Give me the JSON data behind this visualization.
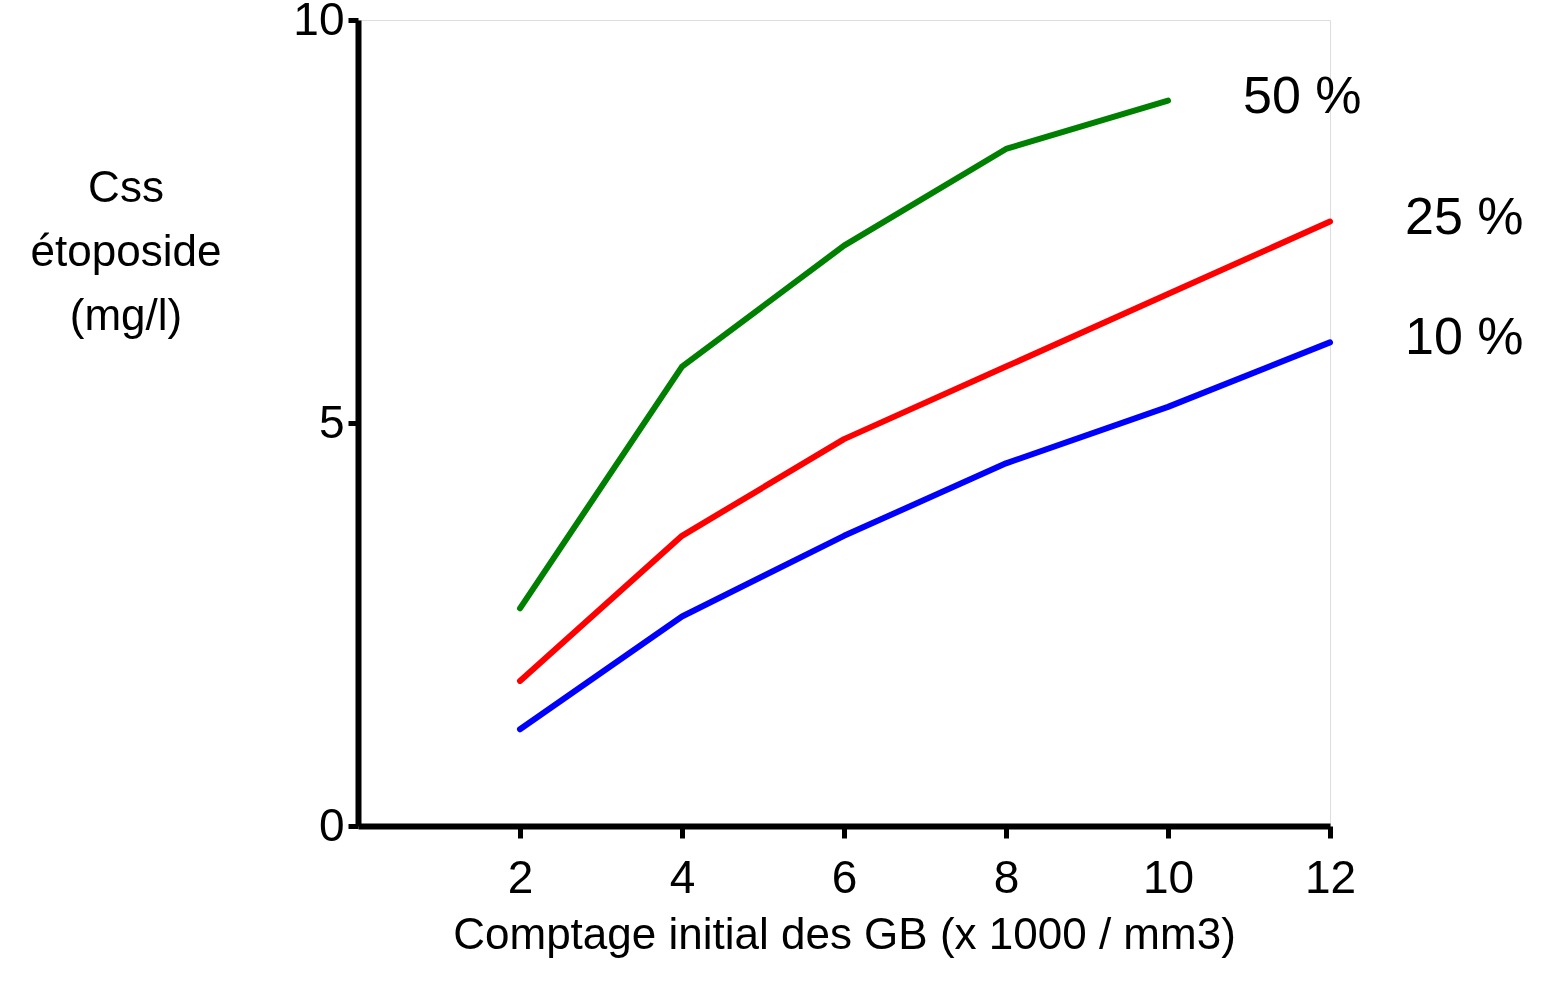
{
  "chart_data": {
    "type": "line",
    "xlabel": "Comptage initial des GB (x 1000 / mm3)",
    "ylabel": "Css étoposide (mg/l)",
    "x": [
      2,
      4,
      6,
      8,
      10,
      12
    ],
    "xlim": [
      0,
      12
    ],
    "xticks": [
      2,
      4,
      6,
      8,
      10,
      12
    ],
    "ylim": [
      0,
      10
    ],
    "yticks": [
      0,
      5,
      10
    ],
    "grid": false,
    "marker": "none",
    "line_style": "solid",
    "series": [
      {
        "name": "50 %",
        "color": "#008000",
        "values": [
          2.7,
          5.7,
          7.2,
          8.4,
          9.0,
          null
        ]
      },
      {
        "name": "25 %",
        "color": "#ff0000",
        "values": [
          1.8,
          3.6,
          4.8,
          5.7,
          6.6,
          7.5
        ]
      },
      {
        "name": "10 %",
        "color": "#0000ff",
        "values": [
          1.2,
          2.6,
          3.6,
          4.5,
          5.2,
          6.0
        ]
      }
    ]
  }
}
